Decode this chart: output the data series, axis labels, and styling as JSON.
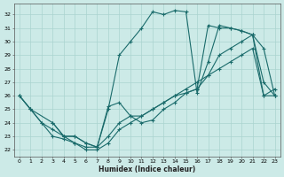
{
  "xlabel": "Humidex (Indice chaleur)",
  "bg_color": "#cceae7",
  "line_color": "#1a6b6b",
  "grid_color": "#aad4d0",
  "xlim": [
    -0.5,
    23.5
  ],
  "ylim": [
    21.5,
    32.8
  ],
  "yticks": [
    22,
    23,
    24,
    25,
    26,
    27,
    28,
    29,
    30,
    31,
    32
  ],
  "xticks": [
    0,
    1,
    2,
    3,
    4,
    5,
    6,
    7,
    8,
    9,
    10,
    11,
    12,
    13,
    14,
    15,
    16,
    17,
    18,
    19,
    20,
    21,
    22,
    23
  ],
  "series": [
    {
      "x": [
        0,
        1,
        3,
        4,
        5,
        6,
        7,
        8,
        9,
        10,
        11,
        12,
        13,
        14,
        15,
        16,
        17,
        18,
        19,
        20,
        21,
        22,
        23
      ],
      "y": [
        26,
        25,
        24,
        23,
        23,
        22.5,
        22.2,
        25,
        29,
        30,
        31,
        32.2,
        32,
        32.3,
        32.2,
        26.2,
        28.5,
        31.2,
        31,
        30.8,
        30.5,
        29.5,
        26
      ]
    },
    {
      "x": [
        0,
        1,
        2,
        3,
        4,
        5,
        6,
        7,
        8,
        9,
        10,
        11,
        12,
        13,
        14,
        15,
        16,
        17,
        18,
        19,
        20,
        21,
        22,
        23
      ],
      "y": [
        26,
        25,
        24,
        23,
        22.8,
        22.5,
        22.2,
        22.2,
        23,
        24,
        24.5,
        24.5,
        25,
        25.5,
        26,
        26.2,
        26.5,
        27.5,
        29,
        29.5,
        30,
        30.5,
        26,
        26
      ]
    },
    {
      "x": [
        3,
        4,
        5,
        6,
        7,
        8,
        9,
        10,
        11,
        12,
        13,
        14,
        15,
        16,
        17,
        18,
        19,
        20,
        21,
        22,
        23
      ],
      "y": [
        24,
        23,
        23,
        22.5,
        22.2,
        25.2,
        25.5,
        24.5,
        24,
        24.2,
        25,
        25.5,
        26.2,
        26.5,
        31.2,
        31,
        31,
        30.8,
        30.5,
        27,
        26
      ]
    },
    {
      "x": [
        0,
        1,
        2,
        3,
        4,
        5,
        6,
        7,
        8,
        9,
        10,
        11,
        12,
        13,
        14,
        15,
        16,
        17,
        18,
        19,
        20,
        21,
        22,
        23
      ],
      "y": [
        26,
        25,
        24,
        23.5,
        23,
        22.5,
        22,
        22,
        22.5,
        23.5,
        24,
        24.5,
        25,
        25.5,
        26,
        26.5,
        27,
        27.5,
        28,
        28.5,
        29,
        29.5,
        26,
        26.5
      ]
    }
  ]
}
